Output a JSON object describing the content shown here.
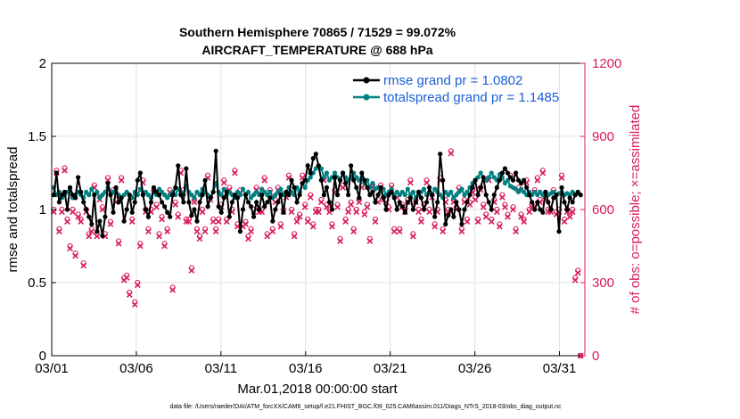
{
  "chart_data": {
    "type": "line",
    "title_line1": "Southern Hemisphere 70865 / 71529 = 99.072%",
    "title_line2": "AIRCRAFT_TEMPERATURE @ 688 hPa",
    "xlabel": "Mar.01,2018 00:00:00 start",
    "ylabel_left": "rmse and totalspread",
    "ylabel_right": "# of obs: o=possible; ×=assimilated",
    "ylim_left": [
      0,
      2
    ],
    "ylim_right": [
      0,
      1200
    ],
    "xlim": [
      0,
      31.5
    ],
    "x_ticks": [
      0,
      5,
      10,
      15,
      20,
      25,
      30
    ],
    "x_tick_labels": [
      "03/01",
      "03/06",
      "03/11",
      "03/16",
      "03/21",
      "03/26",
      "03/31"
    ],
    "y_left_ticks": [
      0,
      0.5,
      1,
      1.5,
      2
    ],
    "y_left_tick_labels": [
      "0",
      "0.5",
      "1",
      "1.5",
      "2"
    ],
    "y_right_ticks": [
      0,
      300,
      600,
      900,
      1200
    ],
    "y_right_tick_labels": [
      "0",
      "300",
      "600",
      "900",
      "1200"
    ],
    "legend": [
      "rmse grand pr = 1.0802",
      "totalspread grand pr = 1.1485"
    ],
    "footnote": "data file: /Users/raeder/DAI/ATM_forcXX/CAM6_setup/f.e21.FHIST_BGC.f09_025.CAM6assim.011/Diags_NTrS_2018-03/obs_diag_output.nc",
    "colors": {
      "rmse": "#000000",
      "spread": "#008080",
      "obs": "#d81b60"
    },
    "rmse": [
      1.1,
      1.25,
      1.05,
      1.1,
      1.12,
      1.0,
      1.15,
      1.1,
      1.08,
      1.22,
      1.12,
      1.05,
      1.0,
      0.95,
      0.9,
      1.1,
      0.85,
      0.92,
      0.82,
      0.95,
      1.18,
      1.1,
      0.98,
      1.15,
      1.05,
      1.08,
      0.92,
      1.0,
      1.1,
      0.98,
      1.05,
      1.2,
      1.25,
      1.1,
      1.0,
      0.95,
      1.05,
      1.15,
      1.12,
      1.1,
      1.05,
      1.02,
      0.98,
      0.95,
      1.1,
      1.15,
      1.3,
      1.1,
      1.05,
      1.28,
      1.05,
      0.96,
      1.0,
      0.92,
      1.05,
      1.1,
      1.2,
      1.02,
      1.08,
      1.12,
      1.4,
      1.02,
      0.98,
      1.08,
      1.12,
      0.95,
      1.05,
      1.1,
      1.08,
      0.85,
      1.0,
      1.1,
      1.05,
      1.02,
      0.95,
      1.05,
      1.0,
      1.1,
      1.02,
      1.05,
      1.08,
      0.92,
      1.0,
      1.05,
      1.1,
      0.98,
      1.12,
      1.1,
      1.2,
      1.15,
      1.05,
      1.1,
      1.18,
      1.2,
      1.3,
      1.25,
      1.35,
      1.38,
      1.3,
      1.2,
      1.1,
      1.15,
      1.05,
      1.0,
      1.22,
      1.1,
      1.2,
      1.25,
      1.18,
      1.1,
      1.3,
      1.2,
      1.15,
      1.08,
      1.25,
      1.2,
      1.15,
      1.1,
      1.12,
      1.05,
      1.1,
      1.15,
      1.08,
      1.0,
      1.1,
      1.12,
      1.08,
      1.0,
      1.05,
      1.02,
      0.98,
      1.05,
      1.08,
      1.0,
      1.05,
      1.12,
      1.08,
      1.0,
      1.05,
      1.15,
      1.1,
      0.95,
      1.05,
      1.38,
      1.2,
      0.9,
      0.96,
      1.0,
      0.95,
      1.05,
      1.0,
      0.9,
      1.0,
      1.05,
      1.1,
      1.15,
      1.2,
      1.1,
      1.15,
      1.22,
      1.1,
      1.05,
      1.0,
      1.1,
      1.15,
      1.2,
      1.25,
      1.28,
      1.25,
      1.22,
      1.2,
      1.25,
      1.2,
      1.18,
      1.2,
      1.15,
      1.1,
      1.05,
      1.0,
      1.05,
      1.0,
      0.98,
      1.12,
      1.05,
      1.0,
      1.08,
      1.1,
      0.85,
      1.15,
      1.05,
      1.0,
      1.08,
      1.05,
      1.1,
      1.12,
      1.1
    ],
    "spread": [
      1.15,
      1.1,
      1.12,
      1.08,
      1.1,
      1.12,
      1.15,
      1.08,
      1.1,
      1.12,
      1.1,
      1.08,
      1.12,
      1.1,
      1.14,
      1.1,
      1.12,
      1.08,
      1.1,
      1.12,
      1.15,
      1.1,
      1.12,
      1.14,
      1.1,
      1.08,
      1.1,
      1.12,
      1.1,
      1.08,
      1.12,
      1.1,
      1.14,
      1.1,
      1.12,
      1.1,
      1.08,
      1.12,
      1.1,
      1.14,
      1.12,
      1.1,
      1.08,
      1.1,
      1.12,
      1.1,
      1.14,
      1.12,
      1.1,
      1.16,
      1.12,
      1.1,
      1.08,
      1.12,
      1.1,
      1.14,
      1.12,
      1.1,
      1.08,
      1.12,
      1.18,
      1.12,
      1.1,
      1.14,
      1.1,
      1.12,
      1.1,
      1.08,
      1.12,
      1.1,
      1.14,
      1.1,
      1.12,
      1.08,
      1.1,
      1.12,
      1.1,
      1.14,
      1.12,
      1.1,
      1.12,
      1.08,
      1.1,
      1.12,
      1.14,
      1.1,
      1.12,
      1.15,
      1.12,
      1.1,
      1.15,
      1.12,
      1.18,
      1.15,
      1.2,
      1.22,
      1.25,
      1.28,
      1.3,
      1.28,
      1.22,
      1.25,
      1.2,
      1.22,
      1.25,
      1.22,
      1.2,
      1.25,
      1.22,
      1.2,
      1.22,
      1.25,
      1.22,
      1.2,
      1.22,
      1.18,
      1.2,
      1.15,
      1.18,
      1.14,
      1.15,
      1.12,
      1.14,
      1.1,
      1.12,
      1.14,
      1.1,
      1.12,
      1.1,
      1.12,
      1.1,
      1.14,
      1.1,
      1.12,
      1.08,
      1.1,
      1.12,
      1.14,
      1.1,
      1.12,
      1.1,
      1.14,
      1.12,
      1.1,
      1.08,
      1.12,
      1.1,
      1.12,
      1.08,
      1.1,
      1.12,
      1.14,
      1.1,
      1.12,
      1.15,
      1.18,
      1.2,
      1.22,
      1.25,
      1.22,
      1.2,
      1.22,
      1.25,
      1.22,
      1.2,
      1.24,
      1.22,
      1.18,
      1.2,
      1.16,
      1.15,
      1.14,
      1.12,
      1.14,
      1.12,
      1.1,
      1.12,
      1.1,
      1.12,
      1.1,
      1.12,
      1.1,
      1.12,
      1.1,
      1.11,
      1.12,
      1.1,
      1.11,
      1.12,
      1.1,
      1.11,
      1.1,
      1.12,
      1.1,
      1.11
    ],
    "obs_possible": [
      600,
      760,
      520,
      600,
      770,
      560,
      450,
      600,
      420,
      580,
      560,
      380,
      600,
      500,
      520,
      700,
      500,
      650,
      610,
      500,
      730,
      550,
      680,
      640,
      470,
      730,
      320,
      330,
      260,
      560,
      220,
      300,
      460,
      720,
      600,
      520,
      600,
      680,
      620,
      500,
      570,
      460,
      520,
      680,
      280,
      630,
      580,
      760,
      680,
      560,
      560,
      360,
      640,
      520,
      490,
      600,
      520,
      740,
      650,
      560,
      520,
      560,
      620,
      720,
      560,
      690,
      600,
      760,
      540,
      680,
      540,
      550,
      490,
      520,
      600,
      690,
      600,
      600,
      730,
      500,
      680,
      520,
      640,
      690,
      540,
      600,
      660,
      740,
      600,
      500,
      560,
      580,
      740,
      620,
      560,
      660,
      540,
      600,
      600,
      640,
      730,
      620,
      600,
      540,
      680,
      620,
      480,
      700,
      560,
      600,
      630,
      520,
      600,
      640,
      700,
      590,
      620,
      480,
      700,
      560,
      640,
      700,
      650,
      640,
      610,
      700,
      520,
      660,
      520,
      620,
      600,
      640,
      720,
      500,
      640,
      600,
      560,
      620,
      720,
      600,
      660,
      540,
      600,
      730,
      520,
      640,
      600,
      840,
      640,
      610,
      690,
      520,
      640,
      560,
      630,
      680,
      650,
      560,
      690,
      620,
      580,
      730,
      560,
      640,
      600,
      540,
      660,
      620,
      580,
      740,
      610,
      520,
      690,
      580,
      560,
      720,
      600,
      620,
      680,
      730,
      640,
      760,
      650,
      600,
      600,
      680,
      590,
      600,
      740,
      560,
      600,
      580,
      600,
      320,
      350,
      0
    ],
    "obs_assimilated": [
      590,
      750,
      510,
      590,
      760,
      550,
      440,
      590,
      410,
      570,
      550,
      370,
      590,
      490,
      510,
      690,
      490,
      640,
      600,
      490,
      720,
      540,
      670,
      630,
      460,
      720,
      310,
      320,
      250,
      550,
      210,
      290,
      450,
      710,
      590,
      510,
      590,
      670,
      610,
      490,
      560,
      450,
      510,
      670,
      270,
      620,
      570,
      750,
      670,
      550,
      550,
      350,
      630,
      510,
      480,
      590,
      510,
      730,
      640,
      550,
      510,
      550,
      610,
      710,
      550,
      680,
      590,
      750,
      530,
      670,
      530,
      540,
      480,
      510,
      590,
      680,
      590,
      590,
      720,
      490,
      670,
      510,
      630,
      680,
      530,
      590,
      650,
      730,
      590,
      490,
      550,
      570,
      730,
      610,
      550,
      650,
      530,
      590,
      590,
      630,
      720,
      610,
      590,
      530,
      670,
      610,
      470,
      690,
      550,
      590,
      620,
      510,
      590,
      630,
      690,
      580,
      610,
      470,
      690,
      550,
      630,
      690,
      640,
      630,
      600,
      690,
      510,
      650,
      510,
      610,
      590,
      630,
      710,
      490,
      630,
      590,
      550,
      610,
      710,
      590,
      650,
      530,
      590,
      720,
      510,
      630,
      590,
      830,
      630,
      600,
      680,
      510,
      630,
      550,
      620,
      670,
      640,
      550,
      680,
      610,
      570,
      720,
      550,
      630,
      590,
      530,
      650,
      610,
      570,
      730,
      600,
      510,
      680,
      570,
      550,
      710,
      590,
      610,
      670,
      720,
      630,
      750,
      640,
      590,
      590,
      670,
      580,
      590,
      730,
      550,
      590,
      570,
      590,
      310,
      340,
      0
    ]
  }
}
